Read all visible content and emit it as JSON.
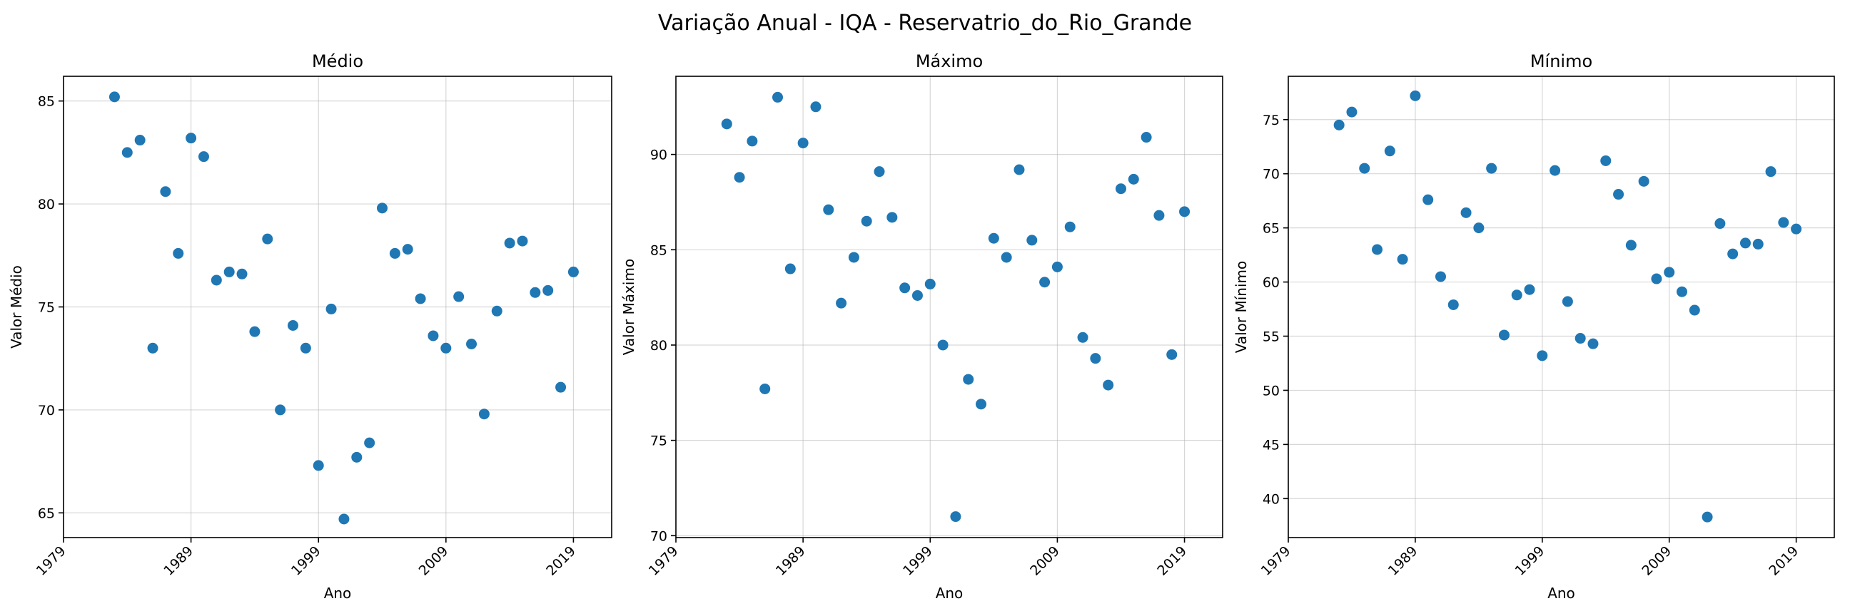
{
  "figure": {
    "title": "Variação Anual - IQA - Reservatrio_do_Rio_Grande"
  },
  "chart_data": [
    {
      "type": "scatter",
      "title": "Médio",
      "xlabel": "Ano",
      "ylabel": "Valor Médio",
      "xlim": [
        1979,
        2022
      ],
      "ylim": [
        63.8,
        86.2
      ],
      "xticks": [
        1979,
        1989,
        1999,
        2009,
        2019
      ],
      "yticks": [
        65,
        70,
        75,
        80,
        85
      ],
      "grid": true,
      "color": "#1f77b4",
      "series": [
        {
          "x": [
            1983,
            1984,
            1985,
            1986,
            1987,
            1988,
            1989,
            1990,
            1991,
            1992,
            1993,
            1994,
            1995,
            1996,
            1997,
            1998,
            1999,
            2000,
            2001,
            2002,
            2003,
            2004,
            2005,
            2006,
            2007,
            2008,
            2009,
            2010,
            2011,
            2012,
            2013,
            2014,
            2015,
            2016,
            2017,
            2018,
            2019
          ],
          "y": [
            85.2,
            82.5,
            83.1,
            73.0,
            80.6,
            77.6,
            83.2,
            82.3,
            76.3,
            76.7,
            76.6,
            73.8,
            78.3,
            70.0,
            74.1,
            73.0,
            67.3,
            74.9,
            64.7,
            67.7,
            68.4,
            79.8,
            77.6,
            77.8,
            75.4,
            73.6,
            73.0,
            75.5,
            73.2,
            69.8,
            74.8,
            78.1,
            78.2,
            75.7,
            75.8,
            71.1,
            76.7
          ]
        }
      ]
    },
    {
      "type": "scatter",
      "title": "Máximo",
      "xlabel": "Ano",
      "ylabel": "Valor Máximo",
      "xlim": [
        1979,
        2022
      ],
      "ylim": [
        69.9,
        94.1
      ],
      "xticks": [
        1979,
        1989,
        1999,
        2009,
        2019
      ],
      "yticks": [
        70,
        75,
        80,
        85,
        90
      ],
      "grid": true,
      "color": "#1f77b4",
      "series": [
        {
          "x": [
            1983,
            1984,
            1985,
            1986,
            1987,
            1988,
            1989,
            1990,
            1991,
            1992,
            1993,
            1994,
            1995,
            1996,
            1997,
            1998,
            1999,
            2000,
            2001,
            2002,
            2003,
            2004,
            2005,
            2006,
            2007,
            2008,
            2009,
            2010,
            2011,
            2012,
            2013,
            2014,
            2015,
            2016,
            2017,
            2018,
            2019
          ],
          "y": [
            91.6,
            88.8,
            90.7,
            77.7,
            93.0,
            84.0,
            90.6,
            92.5,
            87.1,
            82.2,
            84.6,
            86.5,
            89.1,
            86.7,
            83.0,
            82.6,
            83.2,
            80.0,
            71.0,
            78.2,
            76.9,
            85.6,
            84.6,
            89.2,
            85.5,
            83.3,
            84.1,
            86.2,
            80.4,
            79.3,
            77.9,
            88.2,
            88.7,
            90.9,
            86.8,
            79.5,
            87.0
          ]
        }
      ]
    },
    {
      "type": "scatter",
      "title": "Mínimo",
      "xlabel": "Ano",
      "ylabel": "Valor Mínimo",
      "xlim": [
        1979,
        2022
      ],
      "ylim": [
        36.4,
        79.0
      ],
      "xticks": [
        1979,
        1989,
        1999,
        2009,
        2019
      ],
      "yticks": [
        40,
        45,
        50,
        55,
        60,
        65,
        70,
        75
      ],
      "grid": true,
      "color": "#1f77b4",
      "series": [
        {
          "x": [
            1983,
            1984,
            1985,
            1986,
            1987,
            1988,
            1989,
            1990,
            1991,
            1992,
            1993,
            1994,
            1995,
            1996,
            1997,
            1998,
            1999,
            2000,
            2001,
            2002,
            2003,
            2004,
            2005,
            2006,
            2007,
            2008,
            2009,
            2010,
            2011,
            2012,
            2013,
            2014,
            2015,
            2016,
            2017,
            2018,
            2019
          ],
          "y": [
            74.5,
            75.7,
            70.5,
            63.0,
            72.1,
            62.1,
            77.2,
            67.6,
            60.5,
            57.9,
            66.4,
            65.0,
            70.5,
            55.1,
            58.8,
            59.3,
            53.2,
            70.3,
            58.2,
            54.8,
            54.3,
            71.2,
            68.1,
            63.4,
            69.3,
            60.3,
            60.9,
            59.1,
            57.4,
            38.3,
            65.4,
            62.6,
            63.6,
            63.5,
            70.2,
            65.5,
            64.9
          ]
        }
      ]
    }
  ]
}
